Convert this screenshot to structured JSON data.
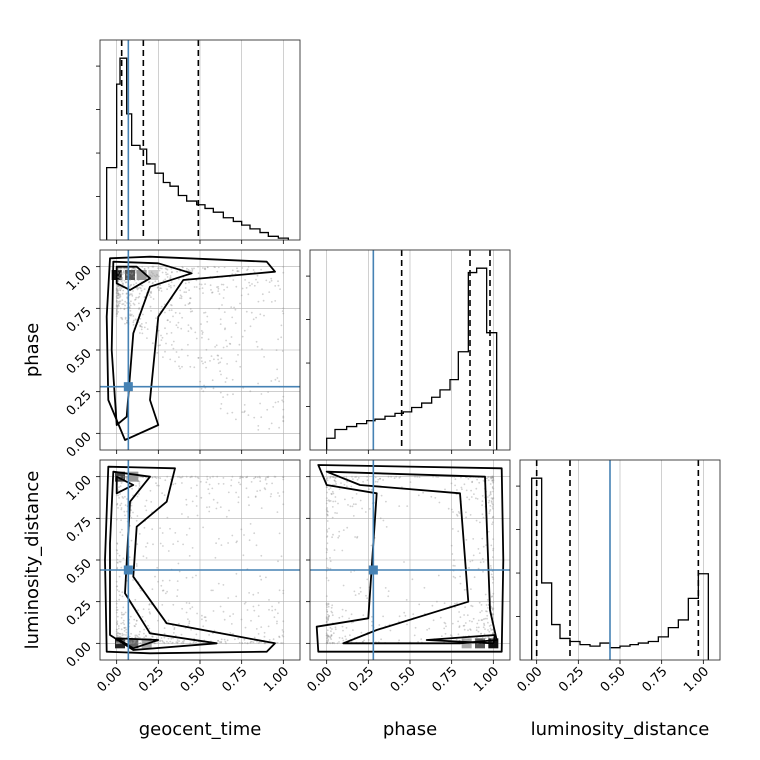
{
  "colors": {
    "truth": "#4682b4",
    "hist": "#000000",
    "grid": "#b0b0b0",
    "point": "#9a9a9a"
  },
  "chart_data": {
    "type": "corner",
    "parameters": [
      "geocent_time",
      "phase",
      "luminosity_distance"
    ],
    "axis_range": [
      -0.1,
      1.1
    ],
    "tick_values": [
      0.0,
      0.25,
      0.5,
      0.75,
      1.0
    ],
    "tick_labels": [
      "0.00",
      "0.25",
      "0.50",
      "0.75",
      "1.00"
    ],
    "grid": true,
    "truths": {
      "geocent_time": 0.07,
      "phase": 0.28,
      "luminosity_distance": 0.44
    },
    "quantiles": {
      "geocent_time": [
        0.03,
        0.16,
        0.49
      ],
      "phase": [
        0.45,
        0.86,
        0.98
      ],
      "luminosity_distance": [
        0.0,
        0.2,
        0.97
      ]
    },
    "histograms": {
      "geocent_time": {
        "bin_edges": [
          -0.06,
          0.0,
          0.02,
          0.06,
          0.09,
          0.14,
          0.18,
          0.23,
          0.28,
          0.32,
          0.37,
          0.42,
          0.48,
          0.53,
          0.58,
          0.64,
          0.7,
          0.75,
          0.8,
          0.86,
          0.91,
          0.97,
          1.03
        ],
        "counts": [
          1.95,
          4.2,
          4.9,
          3.4,
          2.55,
          2.45,
          2.05,
          1.8,
          1.55,
          1.45,
          1.2,
          1.05,
          0.95,
          0.85,
          0.75,
          0.6,
          0.5,
          0.4,
          0.3,
          0.2,
          0.1,
          0.05
        ]
      },
      "phase": {
        "bin_edges": [
          0.0,
          0.05,
          0.12,
          0.18,
          0.24,
          0.29,
          0.35,
          0.41,
          0.46,
          0.51,
          0.57,
          0.63,
          0.68,
          0.74,
          0.79,
          0.85,
          0.9,
          0.96,
          1.02
        ],
        "counts": [
          0.4,
          0.7,
          0.8,
          0.9,
          1.0,
          1.05,
          1.15,
          1.25,
          1.3,
          1.45,
          1.6,
          1.8,
          2.05,
          2.4,
          3.35,
          6.05,
          6.2,
          4.0
        ]
      },
      "luminosity_distance": {
        "bin_edges": [
          -0.03,
          0.03,
          0.09,
          0.14,
          0.2,
          0.26,
          0.32,
          0.38,
          0.44,
          0.5,
          0.56,
          0.61,
          0.67,
          0.73,
          0.79,
          0.85,
          0.91,
          0.97,
          1.03
        ],
        "counts": [
          5.9,
          2.5,
          1.15,
          0.7,
          0.6,
          0.5,
          0.45,
          0.55,
          0.4,
          0.45,
          0.5,
          0.55,
          0.6,
          0.75,
          1.05,
          1.3,
          2.0,
          2.8
        ]
      }
    }
  }
}
